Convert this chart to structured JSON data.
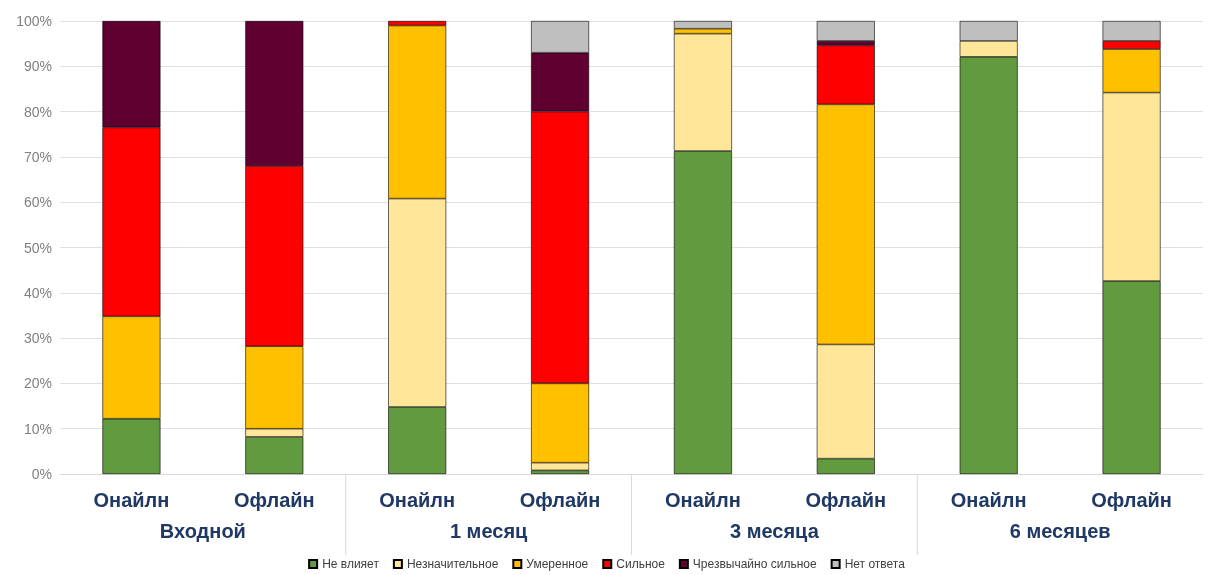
{
  "chart_data": {
    "type": "bar",
    "stacked": true,
    "categories": [
      "Онайлн",
      "Офлайн",
      "Онайлн",
      "Офлайн",
      "Онайлн",
      "Офлайн",
      "Онайлн",
      "Офлайн"
    ],
    "annotations": [
      "Входной",
      "1 месяц",
      "3 месяца",
      "6 месяцев"
    ],
    "series": [
      {
        "name": "Не влияет",
        "color": "#629a3f",
        "values": [
          12.2,
          8.2,
          14.8,
          0.8,
          71.3,
          3.4,
          92.1,
          42.6
        ]
      },
      {
        "name": "Незначительное",
        "color": "#ffe699",
        "values": [
          0,
          1.8,
          46,
          1.7,
          25.9,
          25.2,
          3.5,
          41.6
        ]
      },
      {
        "name": "Умеренное",
        "color": "#ffc000",
        "values": [
          22.6,
          18.2,
          38.2,
          17.5,
          1.1,
          53,
          0,
          9.6
        ]
      },
      {
        "name": "Сильное",
        "color": "#ff0000",
        "values": [
          41.7,
          39.8,
          1,
          60,
          0,
          13,
          0,
          1.8
        ]
      },
      {
        "name": "Чрезвычайно сильное",
        "color": "#600030",
        "values": [
          23.5,
          32,
          0,
          13,
          0,
          1,
          0,
          0
        ]
      },
      {
        "name": "Нет ответа",
        "color": "#bfbfbf",
        "values": [
          0,
          0,
          0,
          7,
          1.7,
          4.4,
          4.4,
          4.4
        ]
      }
    ],
    "ylim": [
      0,
      100
    ],
    "yticks": [
      {
        "value": 0,
        "label": "0%"
      },
      {
        "value": 10,
        "label": "10%"
      },
      {
        "value": 20,
        "label": "20%"
      },
      {
        "value": 30,
        "label": "30%"
      },
      {
        "value": 40,
        "label": "40%"
      },
      {
        "value": 50,
        "label": "50%"
      },
      {
        "value": 60,
        "label": "60%"
      },
      {
        "value": 70,
        "label": "70%"
      },
      {
        "value": 80,
        "label": "80%"
      },
      {
        "value": 90,
        "label": "90%"
      },
      {
        "value": 100,
        "label": "100%"
      }
    ],
    "grid": "y",
    "legend": "bottom"
  }
}
